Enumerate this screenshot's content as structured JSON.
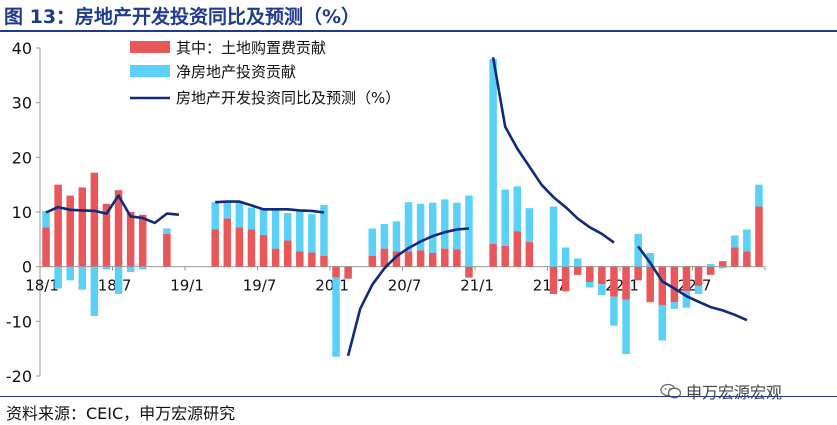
{
  "figure": {
    "title": "图 13：房地产开发投资同比及预测（%）",
    "source": "资料来源：CEIC，申万宏源研究",
    "watermark": "申万宏源宏观",
    "watermark_icon": "wechat-icon"
  },
  "colors": {
    "land": "#e8575a",
    "invest": "#5bd1f7",
    "line": "#102a7c",
    "title": "#1f3b8c"
  },
  "chart_data": {
    "type": "bar",
    "stacked": true,
    "categories": [
      "18/1",
      "18/2",
      "18/3",
      "18/4",
      "18/5",
      "18/6",
      "18/7",
      "18/8",
      "18/9",
      "18/10",
      "18/11",
      "18/12",
      "19/1",
      "19/2",
      "19/3",
      "19/4",
      "19/5",
      "19/6",
      "19/7",
      "19/8",
      "19/9",
      "19/10",
      "19/11",
      "19/12",
      "20/1",
      "20/2",
      "20/3",
      "20/4",
      "20/5",
      "20/6",
      "20/7",
      "20/8",
      "20/9",
      "20/10",
      "20/11",
      "20/12",
      "21/1",
      "21/2",
      "21/3",
      "21/4",
      "21/5",
      "21/6",
      "21/7",
      "21/8",
      "21/9",
      "21/10",
      "21/11",
      "21/12",
      "22/1",
      "22/2",
      "22/3",
      "22/4",
      "22/5",
      "22/6",
      "22/7",
      "22/8",
      "22/9",
      "22/10",
      "22/11",
      "22/12"
    ],
    "x_tick_labels": [
      "18/1",
      "18/7",
      "19/1",
      "19/7",
      "20/1",
      "20/7",
      "21/1",
      "21/7",
      "22/1",
      "22/7"
    ],
    "x_tick_every": 6,
    "series": [
      {
        "name": "其中：土地购置费贡献",
        "kind": "bar",
        "color": "#e8575a",
        "values": [
          7.2,
          15.0,
          13.0,
          14.5,
          17.2,
          11.5,
          14.0,
          10.0,
          9.5,
          null,
          6.0,
          null,
          null,
          null,
          6.8,
          8.8,
          7.2,
          6.8,
          5.8,
          3.3,
          4.8,
          2.8,
          2.6,
          2.0,
          -2.0,
          -2.2,
          null,
          2.0,
          3.3,
          2.8,
          2.8,
          3.0,
          2.5,
          3.3,
          3.2,
          -2.0,
          null,
          4.2,
          3.8,
          6.5,
          4.5,
          null,
          -5.0,
          -4.5,
          -1.5,
          -2.8,
          -3.2,
          -5.5,
          -6.0,
          -2.5,
          -6.5,
          -7.0,
          -6.5,
          -4.5,
          -3.5,
          -1.5,
          1.0,
          3.5,
          2.8,
          11.0
        ]
      },
      {
        "name": "净房地产投资贡献",
        "kind": "bar",
        "color": "#5bd1f7",
        "values": [
          3.0,
          -4.0,
          -2.5,
          -4.2,
          -9.0,
          -0.5,
          -5.0,
          -1.0,
          -0.5,
          null,
          1.0,
          null,
          null,
          null,
          5.0,
          3.2,
          4.5,
          4.0,
          4.8,
          7.2,
          5.0,
          7.5,
          7.0,
          9.3,
          -14.5,
          null,
          null,
          5.0,
          4.5,
          5.5,
          9.0,
          8.5,
          9.2,
          9.0,
          8.5,
          13.0,
          null,
          33.8,
          10.3,
          8.2,
          6.2,
          null,
          11.0,
          3.5,
          1.5,
          -1.0,
          -2.0,
          -5.3,
          -10.0,
          6.0,
          2.5,
          -6.5,
          -1.2,
          -3.0,
          -1.5,
          0.5,
          -0.3,
          2.2,
          4.0,
          4.0
        ]
      },
      {
        "name": "房地产开发投资同比及预测（%）",
        "kind": "line",
        "color": "#102a7c",
        "values": [
          9.9,
          10.9,
          10.4,
          10.3,
          10.2,
          9.7,
          13.0,
          9.2,
          8.9,
          8.0,
          9.7,
          9.5,
          null,
          null,
          11.8,
          11.9,
          11.9,
          11.2,
          10.5,
          10.5,
          10.5,
          10.3,
          10.2,
          9.9,
          null,
          -16.3,
          -7.7,
          -3.3,
          -0.3,
          1.9,
          3.4,
          4.6,
          5.6,
          6.3,
          6.8,
          7.0,
          null,
          38.3,
          25.6,
          21.6,
          18.3,
          15.0,
          12.7,
          10.9,
          8.8,
          7.2,
          6.0,
          4.4,
          null,
          3.7,
          0.7,
          -2.7,
          -4.0,
          -5.4,
          -6.4,
          -7.4,
          -8.0,
          -8.8,
          -9.8,
          null
        ]
      }
    ],
    "ylim": [
      -20,
      40
    ],
    "y_ticks": [
      -20,
      -10,
      0,
      10,
      20,
      30,
      40
    ],
    "xlabel": "",
    "ylabel": "",
    "legend_position": "top-center",
    "grid": false
  }
}
